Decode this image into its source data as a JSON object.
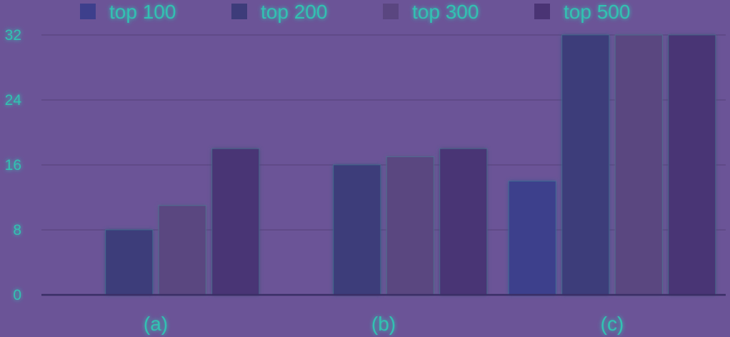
{
  "chart_data": {
    "type": "bar",
    "categories": [
      "(a)",
      "(b)",
      "(c)"
    ],
    "series": [
      {
        "name": "top 100",
        "values": [
          0,
          0,
          14
        ]
      },
      {
        "name": "top 200",
        "values": [
          8,
          16,
          32
        ]
      },
      {
        "name": "top 300",
        "values": [
          11,
          17,
          32
        ]
      },
      {
        "name": "top 500",
        "values": [
          18,
          18,
          32
        ]
      }
    ],
    "series_colors": {
      "top 100": "#3d3f8c",
      "top 200": "#3d3c7a",
      "top 300": "#5a4680",
      "top 500": "#4a3474"
    },
    "y_ticks": [
      "0",
      "8",
      "16",
      "24",
      "32"
    ],
    "ylim": [
      0,
      32
    ],
    "grid": true,
    "legend_position": "top",
    "colors": {
      "background": "#6b5497",
      "text": "#31c2b2",
      "gridline": "#59447f",
      "axis": "#3a2f66"
    }
  }
}
